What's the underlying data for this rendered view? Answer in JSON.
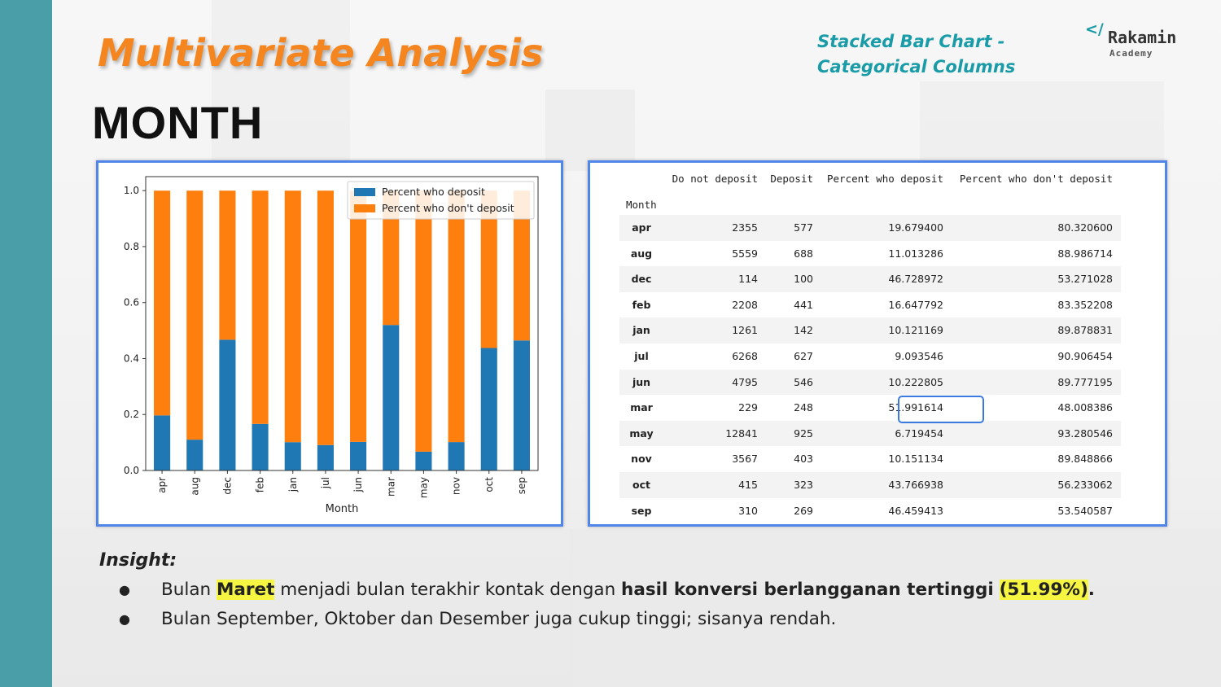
{
  "slide": {
    "title": "Multivariate Analysis",
    "subtitle": "MONTH",
    "chart_type_line1": "Stacked Bar Chart -",
    "chart_type_line2": "Categorical Columns",
    "logo": {
      "name": "Rakamin",
      "sub": "Academy",
      "mark": "</"
    }
  },
  "chart_data": {
    "type": "bar",
    "stacked": true,
    "categories": [
      "apr",
      "aug",
      "dec",
      "feb",
      "jan",
      "jul",
      "jun",
      "mar",
      "may",
      "nov",
      "oct",
      "sep"
    ],
    "series": [
      {
        "name": "Percent who deposit",
        "color": "#1f77b4",
        "values": [
          0.196794,
          0.110133,
          0.46729,
          0.166478,
          0.101212,
          0.090935,
          0.102228,
          0.519916,
          0.067195,
          0.101511,
          0.437669,
          0.464594
        ]
      },
      {
        "name": "Percent who don't deposit",
        "color": "#ff7f0e",
        "values": [
          0.803206,
          0.889867,
          0.53271,
          0.833522,
          0.898788,
          0.909065,
          0.897772,
          0.480084,
          0.932805,
          0.898489,
          0.562331,
          0.535406
        ]
      }
    ],
    "xlabel": "Month",
    "ylabel": "",
    "ylim": [
      0,
      1.05
    ],
    "yticks": [
      "0.0",
      "0.2",
      "0.4",
      "0.6",
      "0.8",
      "1.0"
    ],
    "legend": "top-right",
    "grid": false
  },
  "table": {
    "headers": [
      "Do not deposit",
      "Deposit",
      "Percent who deposit",
      "Percent who don't deposit"
    ],
    "index_name": "Month",
    "rows": [
      {
        "month": "apr",
        "no": "2355",
        "yes": "577",
        "pct_yes": "19.679400",
        "pct_no": "80.320600"
      },
      {
        "month": "aug",
        "no": "5559",
        "yes": "688",
        "pct_yes": "11.013286",
        "pct_no": "88.986714"
      },
      {
        "month": "dec",
        "no": "114",
        "yes": "100",
        "pct_yes": "46.728972",
        "pct_no": "53.271028"
      },
      {
        "month": "feb",
        "no": "2208",
        "yes": "441",
        "pct_yes": "16.647792",
        "pct_no": "83.352208"
      },
      {
        "month": "jan",
        "no": "1261",
        "yes": "142",
        "pct_yes": "10.121169",
        "pct_no": "89.878831"
      },
      {
        "month": "jul",
        "no": "6268",
        "yes": "627",
        "pct_yes": "9.093546",
        "pct_no": "90.906454"
      },
      {
        "month": "jun",
        "no": "4795",
        "yes": "546",
        "pct_yes": "10.222805",
        "pct_no": "89.777195"
      },
      {
        "month": "mar",
        "no": "229",
        "yes": "248",
        "pct_yes": "51.991614",
        "pct_no": "48.008386"
      },
      {
        "month": "may",
        "no": "12841",
        "yes": "925",
        "pct_yes": "6.719454",
        "pct_no": "93.280546"
      },
      {
        "month": "nov",
        "no": "3567",
        "yes": "403",
        "pct_yes": "10.151134",
        "pct_no": "89.848866"
      },
      {
        "month": "oct",
        "no": "415",
        "yes": "323",
        "pct_yes": "43.766938",
        "pct_no": "56.233062"
      },
      {
        "month": "sep",
        "no": "310",
        "yes": "269",
        "pct_yes": "46.459413",
        "pct_no": "53.540587"
      }
    ],
    "highlighted_row": "mar"
  },
  "insight": {
    "heading": "Insight:",
    "bullet1": {
      "t1": "Bulan ",
      "t2": "Maret",
      "t3": " menjadi bulan terakhir kontak dengan ",
      "t4": "hasil konversi berlangganan tertinggi",
      "t5": " ",
      "t6": "(51.99%)",
      "t7": "."
    },
    "bullet2": "Bulan September, Oktober dan Desember juga cukup tinggi; sisanya rendah.",
    "bullet_char": "●"
  }
}
